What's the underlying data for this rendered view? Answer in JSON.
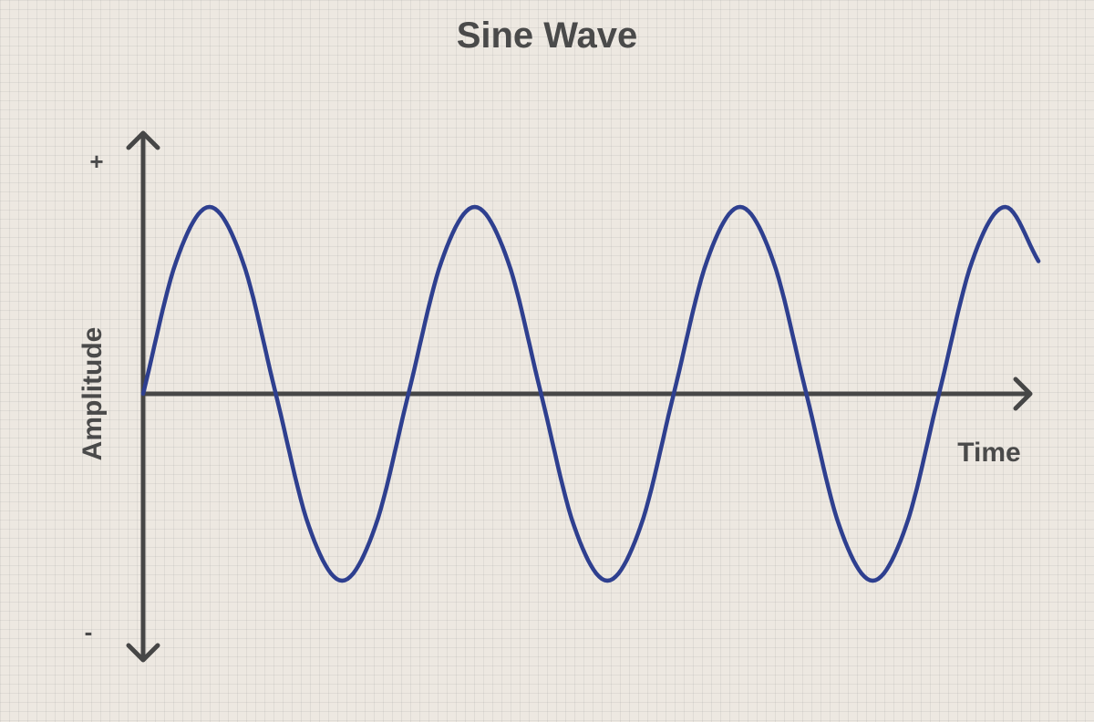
{
  "chart_data": {
    "type": "line",
    "title": "Sine Wave",
    "xlabel": "Time",
    "ylabel": "Amplitude",
    "y_positive_label": "+",
    "y_negative_label": "-",
    "x": [
      0.0,
      0.25,
      0.5,
      0.75,
      1.0,
      1.25,
      1.5,
      1.75,
      2.0,
      2.25,
      2.5,
      2.75,
      3.0,
      3.25,
      3.5,
      3.75,
      4.0,
      4.25,
      4.5,
      4.75,
      5.0,
      5.25,
      5.5,
      5.75,
      6.0,
      6.25,
      6.5,
      6.75
    ],
    "series": [
      {
        "values": [
          0,
          0.71,
          1,
          0.71,
          0,
          -0.71,
          -1,
          -0.71,
          0,
          0.71,
          1,
          0.71,
          0,
          -0.71,
          -1,
          -0.71,
          0,
          0.71,
          1,
          0.71,
          0,
          -0.71,
          -1,
          -0.71,
          0,
          0.71,
          1,
          0.71
        ],
        "color": "#2e3f8f"
      }
    ],
    "xlim": [
      0,
      6.75
    ],
    "ylim": [
      -1,
      1
    ],
    "grid": true,
    "axis_color": "#464646",
    "background_color": "#ede8e1"
  }
}
